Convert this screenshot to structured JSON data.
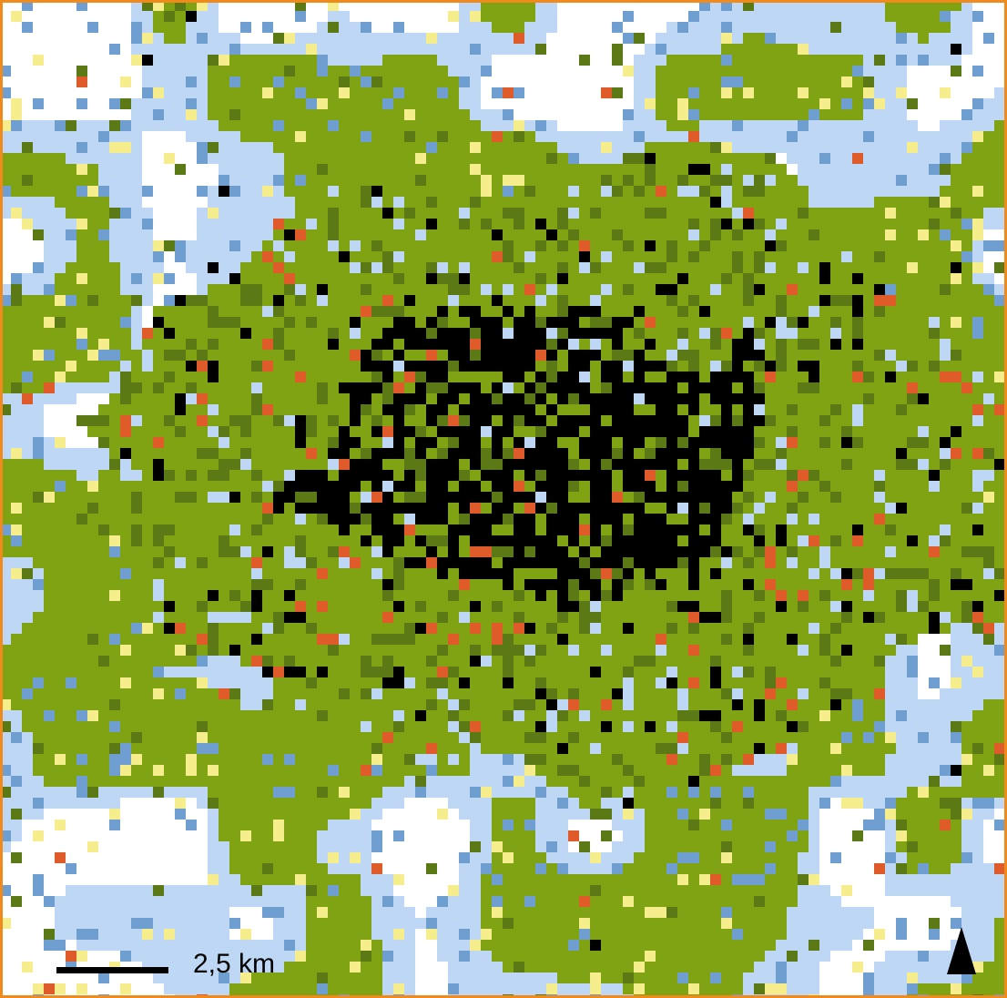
{
  "scale_bar": {
    "label": "2,5 km"
  }
}
